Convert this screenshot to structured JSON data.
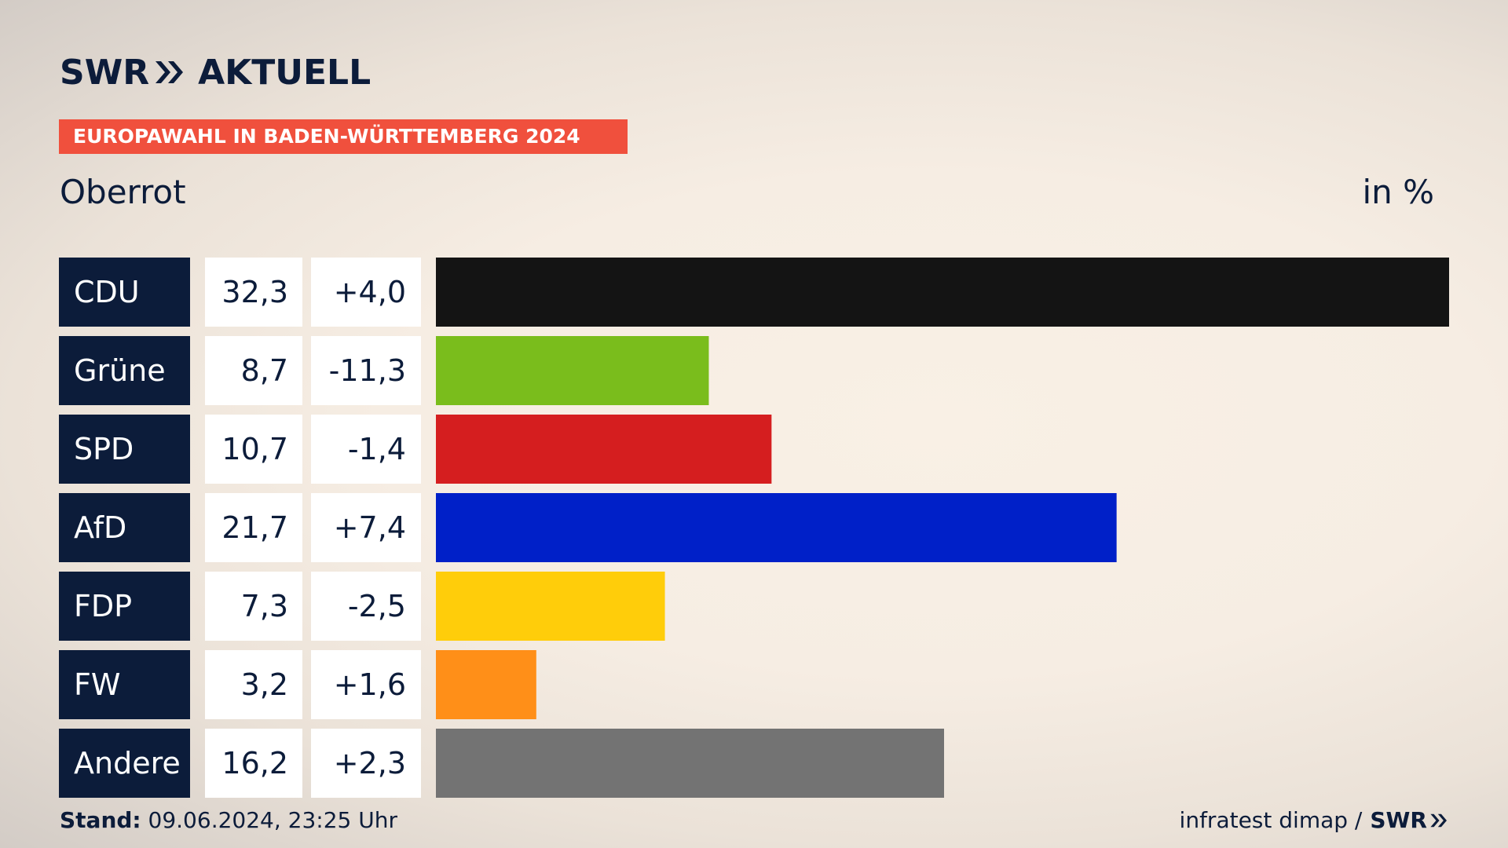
{
  "logo": {
    "left": "SWR",
    "right": "AKTUELL"
  },
  "banner": "EUROPAWAHL IN BADEN-WÜRTTEMBERG 2024",
  "subtitle": "Oberrot",
  "unit": "in %",
  "footer": {
    "stand_label": "Stand:",
    "stand_value": "09.06.2024, 23:25 Uhr",
    "source": "infratest dimap /",
    "brand": "SWR"
  },
  "colors": {
    "label_bg": "#0c1c3a",
    "cell_bg": "#ffffff",
    "banner": "#f0503d"
  },
  "chart_data": {
    "type": "bar",
    "orientation": "horizontal",
    "categories": [
      "CDU",
      "Grüne",
      "SPD",
      "AfD",
      "FDP",
      "FW",
      "Andere"
    ],
    "values": [
      32.3,
      8.7,
      10.7,
      21.7,
      7.3,
      3.2,
      16.2
    ],
    "value_labels": [
      "32,3",
      "8,7",
      "10,7",
      "21,7",
      "7,3",
      "3,2",
      "16,2"
    ],
    "changes": [
      "+4,0",
      "-11,3",
      "-1,4",
      "+7,4",
      "-2,5",
      "+1,6",
      "+2,3"
    ],
    "colors": [
      "#141414",
      "#7abd1c",
      "#d51e1f",
      "#0020c8",
      "#ffcd0a",
      "#ff8f18",
      "#737373"
    ],
    "title": "Oberrot",
    "unit": "in %",
    "xlim": [
      0,
      32.3
    ],
    "grid": false,
    "legend": "none"
  }
}
